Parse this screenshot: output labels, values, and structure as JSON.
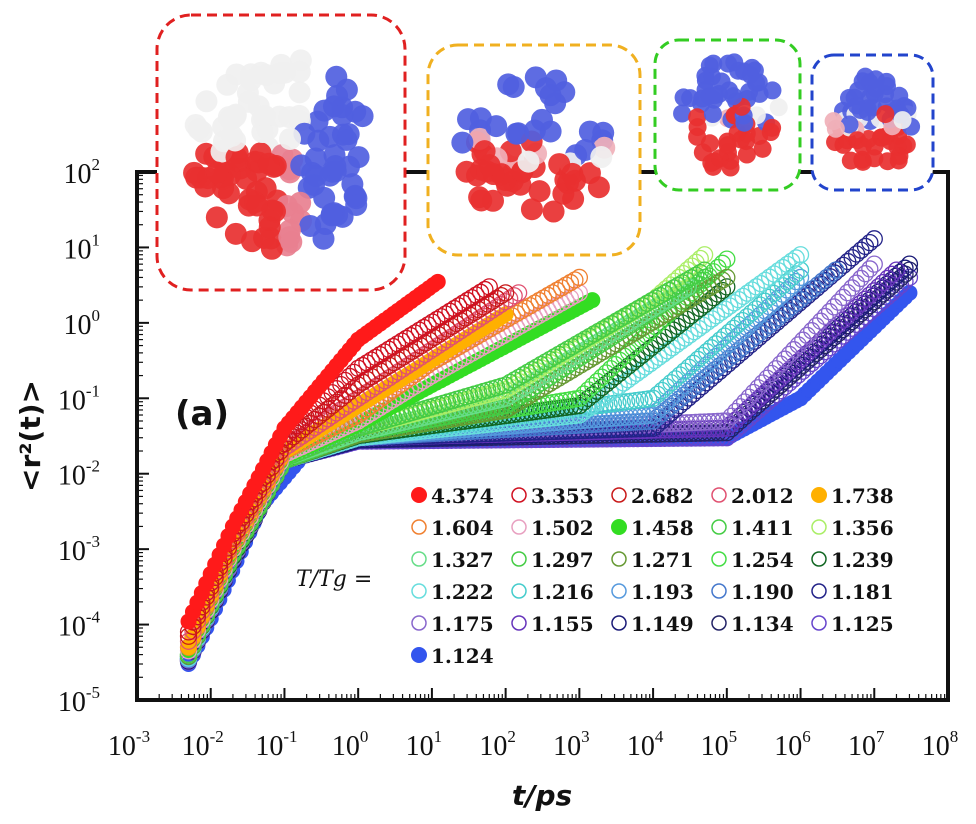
{
  "chart_data": {
    "type": "scatter",
    "title": "",
    "panel_label": "(a)",
    "xlabel": "t/ps",
    "ylabel": "<r²(t)>",
    "xscale": "log",
    "yscale": "log",
    "xlim": [
      0.001,
      100000000
    ],
    "ylim": [
      1e-05,
      100
    ],
    "x_ticks": [
      {
        "base": "10",
        "exp": "-3"
      },
      {
        "base": "10",
        "exp": "-2"
      },
      {
        "base": "10",
        "exp": "-1"
      },
      {
        "base": "10",
        "exp": "0"
      },
      {
        "base": "10",
        "exp": "1"
      },
      {
        "base": "10",
        "exp": "2"
      },
      {
        "base": "10",
        "exp": "3"
      },
      {
        "base": "10",
        "exp": "4"
      },
      {
        "base": "10",
        "exp": "5"
      },
      {
        "base": "10",
        "exp": "6"
      },
      {
        "base": "10",
        "exp": "7"
      },
      {
        "base": "10",
        "exp": "8"
      }
    ],
    "y_ticks": [
      {
        "base": "10",
        "exp": "2"
      },
      {
        "base": "10",
        "exp": "1"
      },
      {
        "base": "10",
        "exp": "0"
      },
      {
        "base": "10",
        "exp": "-1"
      },
      {
        "base": "10",
        "exp": "-2"
      },
      {
        "base": "10",
        "exp": "-3"
      },
      {
        "base": "10",
        "exp": "-4"
      },
      {
        "base": "10",
        "exp": "-5"
      }
    ],
    "grid": false,
    "legend_title": "T/Tg =",
    "legend_placement": "bottom-right",
    "series": [
      {
        "name": "4.374",
        "color": "#ff1a1a",
        "filled": true,
        "points": [
          [
            0.005,
            0.00011
          ],
          [
            0.02,
            0.002
          ],
          [
            0.1,
            0.04
          ],
          [
            1,
            0.6
          ],
          [
            12,
            3.5
          ]
        ]
      },
      {
        "name": "3.353",
        "color": "#d01020",
        "filled": false,
        "points": [
          [
            0.005,
            8e-05
          ],
          [
            0.02,
            0.0016
          ],
          [
            0.1,
            0.03
          ],
          [
            1,
            0.25
          ],
          [
            60,
            3
          ]
        ]
      },
      {
        "name": "2.682",
        "color": "#c81818",
        "filled": false,
        "points": [
          [
            0.005,
            7e-05
          ],
          [
            0.02,
            0.0014
          ],
          [
            0.1,
            0.025
          ],
          [
            1,
            0.15
          ],
          [
            100,
            2.5
          ]
        ]
      },
      {
        "name": "2.012",
        "color": "#e05070",
        "filled": false,
        "points": [
          [
            0.005,
            6e-05
          ],
          [
            0.02,
            0.0013
          ],
          [
            0.1,
            0.022
          ],
          [
            1,
            0.1
          ],
          [
            150,
            2.5
          ]
        ]
      },
      {
        "name": "1.738",
        "color": "#ffb000",
        "filled": true,
        "points": [
          [
            0.005,
            5e-05
          ],
          [
            0.02,
            0.0012
          ],
          [
            0.1,
            0.02
          ],
          [
            1,
            0.08
          ],
          [
            100,
            1.3
          ]
        ]
      },
      {
        "name": "1.604",
        "color": "#f08030",
        "filled": false,
        "points": [
          [
            0.005,
            5e-05
          ],
          [
            0.02,
            0.0011
          ],
          [
            0.1,
            0.02
          ],
          [
            1,
            0.06
          ],
          [
            10,
            0.3
          ],
          [
            1000,
            4
          ]
        ]
      },
      {
        "name": "1.502",
        "color": "#e8a0c0",
        "filled": false,
        "points": [
          [
            0.005,
            4.5e-05
          ],
          [
            0.02,
            0.001
          ],
          [
            0.1,
            0.018
          ],
          [
            1,
            0.05
          ],
          [
            10,
            0.2
          ],
          [
            1000,
            2.5
          ]
        ]
      },
      {
        "name": "1.458",
        "color": "#33dd22",
        "filled": true,
        "points": [
          [
            0.005,
            4.5e-05
          ],
          [
            0.02,
            0.001
          ],
          [
            0.1,
            0.017
          ],
          [
            1,
            0.045
          ],
          [
            10,
            0.15
          ],
          [
            1500,
            2
          ]
        ]
      },
      {
        "name": "1.411",
        "color": "#44cc44",
        "filled": false,
        "points": [
          [
            0.005,
            4e-05
          ],
          [
            0.02,
            0.0009
          ],
          [
            0.1,
            0.016
          ],
          [
            1,
            0.04
          ],
          [
            100,
            0.15
          ],
          [
            50000,
            5
          ]
        ]
      },
      {
        "name": "1.356",
        "color": "#aaee66",
        "filled": false,
        "points": [
          [
            0.005,
            4e-05
          ],
          [
            0.02,
            0.0009
          ],
          [
            0.1,
            0.016
          ],
          [
            1,
            0.04
          ],
          [
            100,
            0.13
          ],
          [
            10000,
            2
          ],
          [
            50000,
            8
          ]
        ]
      },
      {
        "name": "1.327",
        "color": "#66dd88",
        "filled": false,
        "points": [
          [
            0.005,
            4e-05
          ],
          [
            0.02,
            0.0009
          ],
          [
            0.1,
            0.016
          ],
          [
            1,
            0.035
          ],
          [
            100,
            0.1
          ],
          [
            30000,
            3
          ]
        ]
      },
      {
        "name": "1.297",
        "color": "#44cc44",
        "filled": false,
        "points": [
          [
            0.005,
            4e-05
          ],
          [
            0.02,
            0.00085
          ],
          [
            0.1,
            0.015
          ],
          [
            1,
            0.035
          ],
          [
            100,
            0.08
          ],
          [
            50000,
            4
          ]
        ]
      },
      {
        "name": "1.271",
        "color": "#669933",
        "filled": false,
        "points": [
          [
            0.005,
            3.8e-05
          ],
          [
            0.02,
            0.00085
          ],
          [
            0.1,
            0.015
          ],
          [
            1,
            0.033
          ],
          [
            100,
            0.07
          ],
          [
            100000,
            4
          ]
        ]
      },
      {
        "name": "1.254",
        "color": "#44dd44",
        "filled": false,
        "points": [
          [
            0.005,
            3.8e-05
          ],
          [
            0.02,
            0.00085
          ],
          [
            0.1,
            0.015
          ],
          [
            1,
            0.033
          ],
          [
            1000,
            0.1
          ],
          [
            100000,
            7
          ]
        ]
      },
      {
        "name": "1.239",
        "color": "#116622",
        "filled": false,
        "points": [
          [
            0.005,
            3.8e-05
          ],
          [
            0.02,
            0.0008
          ],
          [
            0.1,
            0.015
          ],
          [
            1,
            0.032
          ],
          [
            1000,
            0.08
          ],
          [
            100000,
            3
          ]
        ]
      },
      {
        "name": "1.222",
        "color": "#66dddd",
        "filled": false,
        "points": [
          [
            0.005,
            3.6e-05
          ],
          [
            0.02,
            0.0008
          ],
          [
            0.1,
            0.015
          ],
          [
            1,
            0.03
          ],
          [
            1000,
            0.06
          ],
          [
            1000000,
            8
          ]
        ]
      },
      {
        "name": "1.216",
        "color": "#44cccc",
        "filled": false,
        "points": [
          [
            0.005,
            3.6e-05
          ],
          [
            0.02,
            0.0008
          ],
          [
            0.1,
            0.015
          ],
          [
            1,
            0.03
          ],
          [
            10000,
            0.1
          ],
          [
            1000000,
            5
          ]
        ]
      },
      {
        "name": "1.193",
        "color": "#5599dd",
        "filled": false,
        "points": [
          [
            0.005,
            3.5e-05
          ],
          [
            0.02,
            0.0008
          ],
          [
            0.1,
            0.015
          ],
          [
            1,
            0.03
          ],
          [
            10000,
            0.06
          ],
          [
            1000000,
            4
          ]
        ]
      },
      {
        "name": "1.190",
        "color": "#4477cc",
        "filled": false,
        "points": [
          [
            0.005,
            3.5e-05
          ],
          [
            0.02,
            0.0008
          ],
          [
            0.1,
            0.015
          ],
          [
            1,
            0.03
          ],
          [
            10000,
            0.05
          ],
          [
            3000000,
            5
          ]
        ]
      },
      {
        "name": "1.181",
        "color": "#222288",
        "filled": false,
        "points": [
          [
            0.005,
            3.5e-05
          ],
          [
            0.02,
            0.0008
          ],
          [
            0.1,
            0.015
          ],
          [
            1,
            0.03
          ],
          [
            10000,
            0.04
          ],
          [
            10000000,
            13
          ]
        ]
      },
      {
        "name": "1.175",
        "color": "#8866cc",
        "filled": false,
        "points": [
          [
            0.005,
            3.4e-05
          ],
          [
            0.02,
            0.00075
          ],
          [
            0.1,
            0.015
          ],
          [
            1,
            0.03
          ],
          [
            100000,
            0.05
          ],
          [
            10000000,
            6
          ]
        ]
      },
      {
        "name": "1.155",
        "color": "#6633bb",
        "filled": false,
        "points": [
          [
            0.005,
            3.4e-05
          ],
          [
            0.02,
            0.00075
          ],
          [
            0.1,
            0.015
          ],
          [
            1,
            0.03
          ],
          [
            100000,
            0.04
          ],
          [
            20000000,
            5
          ]
        ]
      },
      {
        "name": "1.149",
        "color": "#1a1a77",
        "filled": false,
        "points": [
          [
            0.005,
            3.3e-05
          ],
          [
            0.02,
            0.00075
          ],
          [
            0.1,
            0.015
          ],
          [
            1,
            0.028
          ],
          [
            100000,
            0.04
          ],
          [
            30000000,
            6
          ]
        ]
      },
      {
        "name": "1.134",
        "color": "#222266",
        "filled": false,
        "points": [
          [
            0.005,
            3.3e-05
          ],
          [
            0.02,
            0.0007
          ],
          [
            0.1,
            0.015
          ],
          [
            1,
            0.028
          ],
          [
            100000,
            0.035
          ],
          [
            30000000,
            5
          ]
        ]
      },
      {
        "name": "1.125",
        "color": "#6644cc",
        "filled": false,
        "points": [
          [
            0.005,
            3.2e-05
          ],
          [
            0.02,
            0.0007
          ],
          [
            0.1,
            0.015
          ],
          [
            1,
            0.027
          ],
          [
            100000,
            0.03
          ],
          [
            30000000,
            4
          ]
        ]
      },
      {
        "name": "1.124",
        "color": "#3355ee",
        "filled": true,
        "points": [
          [
            0.005,
            3e-05
          ],
          [
            0.01,
            0.00012
          ],
          [
            0.05,
            0.004
          ],
          [
            0.2,
            0.02
          ],
          [
            1,
            0.027
          ],
          [
            100000,
            0.03
          ],
          [
            1000000,
            0.1
          ],
          [
            30000000,
            2.5
          ]
        ]
      }
    ]
  },
  "insets": [
    {
      "border_color": "#e02020"
    },
    {
      "border_color": "#f0b020"
    },
    {
      "border_color": "#33cc22"
    },
    {
      "border_color": "#2244cc"
    }
  ]
}
